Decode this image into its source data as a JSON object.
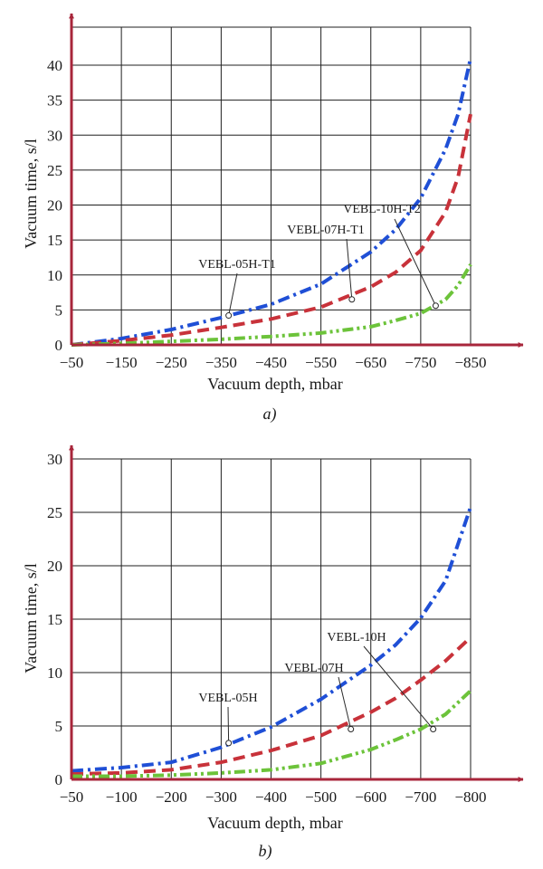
{
  "chart_data": [
    {
      "type": "line",
      "panel_label": "a)",
      "xlabel": "Vacuum depth, mbar",
      "ylabel": "Vacuum time, s/l",
      "xlim": [
        -50,
        -850
      ],
      "ylim": [
        0,
        45
      ],
      "x_ticks": [
        -50,
        -150,
        -250,
        -350,
        -450,
        -550,
        -650,
        -750,
        -850
      ],
      "x_tick_labels": [
        "−50",
        "−150",
        "−250",
        "−350",
        "−450",
        "−550",
        "−650",
        "−750",
        "−850"
      ],
      "y_ticks": [
        0,
        5,
        10,
        15,
        20,
        25,
        30,
        35,
        40
      ],
      "y_tick_labels": [
        "0",
        "5",
        "10",
        "15",
        "20",
        "25",
        "30",
        "35",
        "40"
      ],
      "grid": true,
      "series": [
        {
          "name": "VEBL-05H-T1",
          "color": "#1f4fd6",
          "dash": "dashdot",
          "x": [
            -50,
            -150,
            -250,
            -350,
            -450,
            -550,
            -650,
            -700,
            -750,
            -800,
            -825,
            -850
          ],
          "y": [
            0,
            0.9,
            2.2,
            3.9,
            5.8,
            8.7,
            13.3,
            16.5,
            21.0,
            28.0,
            33.0,
            41.0
          ]
        },
        {
          "name": "VEBL-07H-T1",
          "color": "#c8323a",
          "dash": "dashed",
          "x": [
            -50,
            -150,
            -250,
            -350,
            -450,
            -550,
            -650,
            -700,
            -750,
            -800,
            -825,
            -850
          ],
          "y": [
            0,
            0.6,
            1.4,
            2.5,
            3.7,
            5.4,
            8.3,
            10.4,
            13.5,
            19.0,
            24.0,
            33.0
          ]
        },
        {
          "name": "VEBL-10H-T2",
          "color": "#6cc33a",
          "dash": "dashdotdot",
          "x": [
            -50,
            -150,
            -250,
            -350,
            -450,
            -550,
            -650,
            -700,
            -750,
            -800,
            -825,
            -850
          ],
          "y": [
            0,
            0.2,
            0.5,
            0.8,
            1.2,
            1.7,
            2.6,
            3.5,
            4.5,
            6.5,
            8.5,
            11.5
          ]
        }
      ],
      "annotations": [
        {
          "text": "VEBL-05H-T1",
          "series": "VEBL-05H-T1",
          "point": [
            -365,
            4.2
          ]
        },
        {
          "text": "VEBL-07H-T1",
          "series": "VEBL-07H-T1",
          "point": [
            -612,
            6.5
          ]
        },
        {
          "text": "VEBL-10H-T2",
          "series": "VEBL-10H-T2",
          "point": [
            -780,
            5.6
          ]
        }
      ]
    },
    {
      "type": "line",
      "panel_label": "b)",
      "xlabel": "Vacuum depth, mbar",
      "ylabel": "Vacuum time, s/l",
      "xlim": [
        -50,
        -800
      ],
      "ylim": [
        0,
        30
      ],
      "x_ticks": [
        -50,
        -100,
        -200,
        -300,
        -400,
        -500,
        -600,
        -700,
        -800
      ],
      "x_tick_labels": [
        "−50",
        "−100",
        "−200",
        "−300",
        "−400",
        "−500",
        "−600",
        "−700",
        "−800"
      ],
      "y_ticks": [
        0,
        5,
        10,
        15,
        20,
        25,
        30
      ],
      "y_tick_labels": [
        "0",
        "5",
        "10",
        "15",
        "20",
        "25",
        "30"
      ],
      "grid": true,
      "series": [
        {
          "name": "VEBL-05H",
          "color": "#1f4fd6",
          "dash": "dashdot",
          "x": [
            -50,
            -100,
            -200,
            -300,
            -400,
            -500,
            -600,
            -650,
            -700,
            -750,
            -800
          ],
          "y": [
            0.8,
            1.1,
            1.6,
            3.0,
            4.9,
            7.5,
            10.7,
            12.6,
            15.1,
            18.6,
            25.5
          ]
        },
        {
          "name": "VEBL-07H",
          "color": "#c8323a",
          "dash": "dashed",
          "x": [
            -50,
            -100,
            -200,
            -300,
            -400,
            -500,
            -600,
            -650,
            -700,
            -750,
            -800
          ],
          "y": [
            0.5,
            0.6,
            0.9,
            1.6,
            2.7,
            4.1,
            6.3,
            7.6,
            9.3,
            11.1,
            13.3
          ]
        },
        {
          "name": "VEBL-10H",
          "color": "#6cc33a",
          "dash": "dashdotdot",
          "x": [
            -50,
            -100,
            -200,
            -300,
            -400,
            -500,
            -600,
            -650,
            -700,
            -750,
            -800
          ],
          "y": [
            0.3,
            0.3,
            0.4,
            0.6,
            0.9,
            1.5,
            2.8,
            3.7,
            4.7,
            6.1,
            8.3
          ]
        }
      ],
      "annotations": [
        {
          "text": "VEBL-05H",
          "series": "VEBL-05H",
          "point": [
            -315,
            3.4
          ]
        },
        {
          "text": "VEBL-07H",
          "series": "VEBL-07H",
          "point": [
            -560,
            4.7
          ]
        },
        {
          "text": "VEBL-10H",
          "series": "VEBL-10H",
          "point": [
            -725,
            4.7
          ]
        }
      ]
    }
  ]
}
